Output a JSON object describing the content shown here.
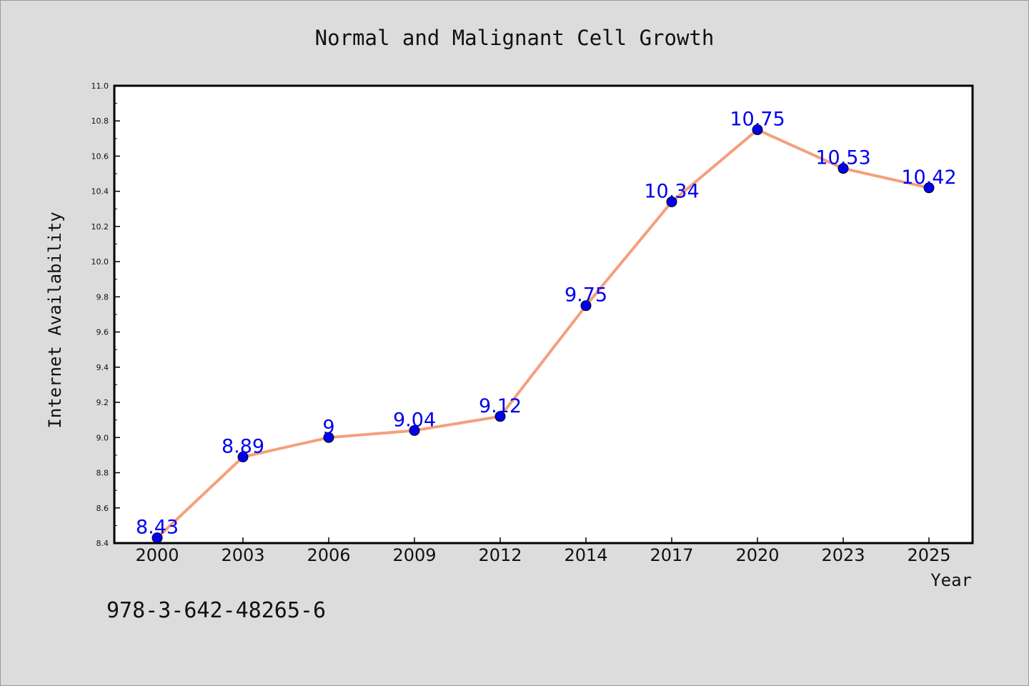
{
  "chart_data": {
    "type": "line",
    "title": "Normal and Malignant Cell Growth",
    "xlabel": "Year",
    "ylabel": "Internet Availability",
    "categories": [
      "2000",
      "2003",
      "2006",
      "2009",
      "2012",
      "2014",
      "2017",
      "2020",
      "2023",
      "2025"
    ],
    "values": [
      8.43,
      8.89,
      9,
      9.04,
      9.12,
      9.75,
      10.34,
      10.75,
      10.53,
      10.42
    ],
    "data_labels": [
      "8.43",
      "8.89",
      "9",
      "9.04",
      "9.12",
      "9.75",
      "10.34",
      "10.75",
      "10.53",
      "10.42"
    ],
    "ylim": [
      8.4,
      11.0
    ],
    "yticks": [
      "8.4",
      "8.6",
      "8.8",
      "9.0",
      "9.2",
      "9.4",
      "9.6",
      "9.8",
      "10.0",
      "10.2",
      "10.4",
      "10.6",
      "10.8",
      "11.0"
    ],
    "grid": false,
    "line_color": "#f4a07c",
    "marker_color": "#0000ee",
    "label_color": "#0000ee"
  },
  "footer": {
    "isbn": "978-3-642-48265-6"
  }
}
